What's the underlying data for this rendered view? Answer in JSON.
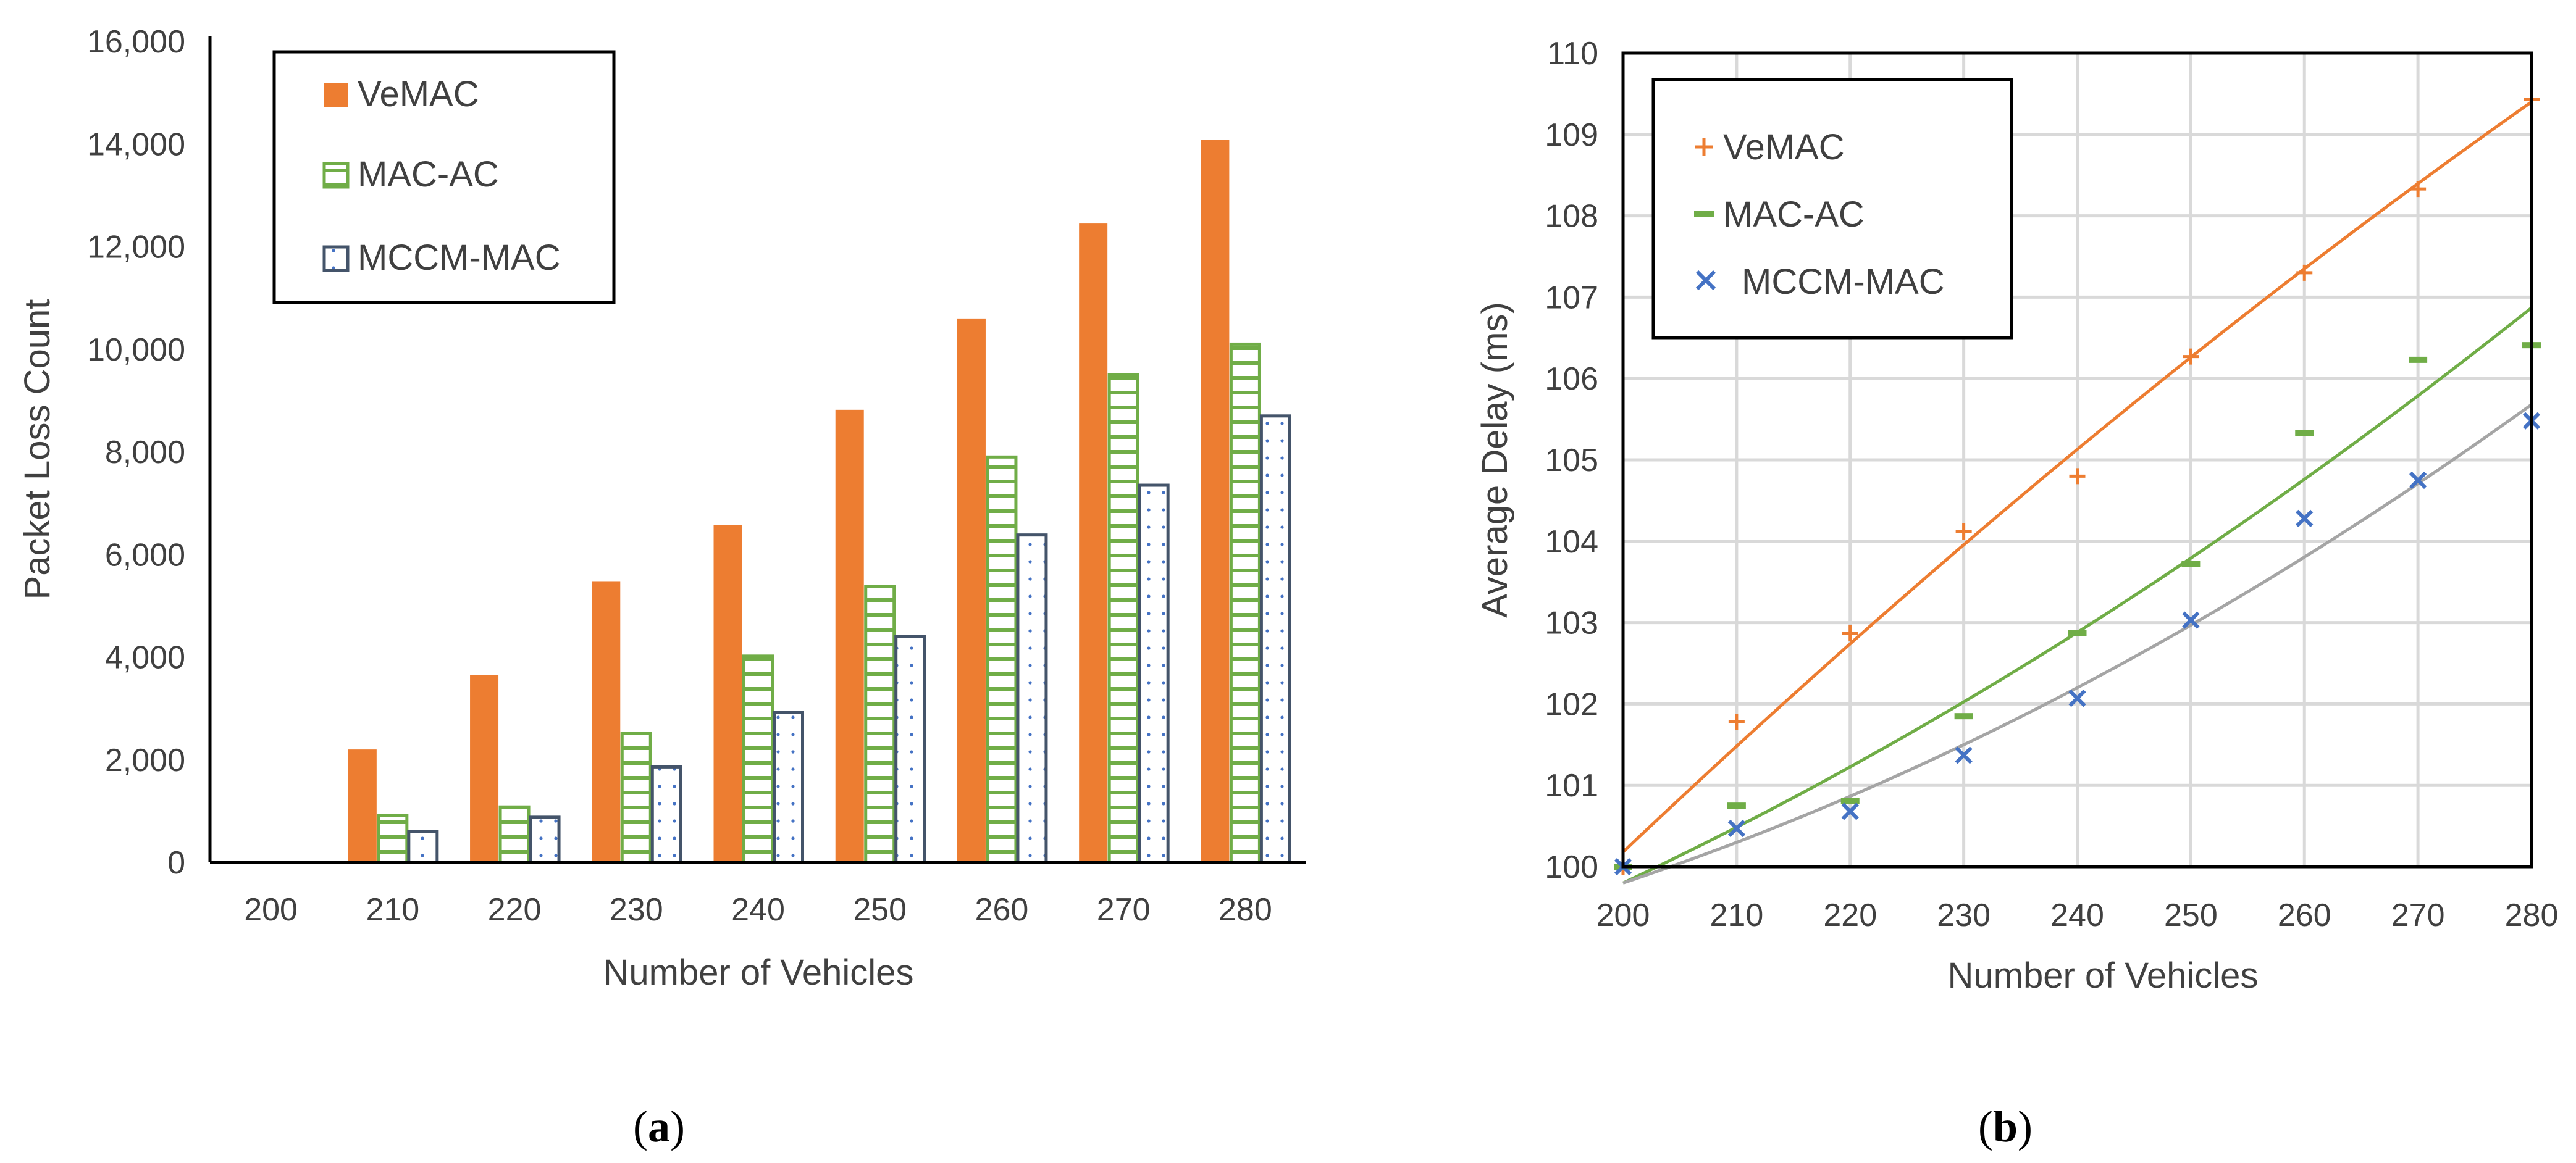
{
  "colors": {
    "vemac": "#ED7D31",
    "macac": "#70AD47",
    "mccm": "#44546A",
    "mccm_marker": "#4472C4",
    "mccm_trend": "#A5A5A5",
    "grid": "#D9D9D9",
    "axis": "#000000"
  },
  "chart_data": [
    {
      "id": "a",
      "type": "bar",
      "caption": {
        "open": "(",
        "letter": "a",
        "close": ")"
      },
      "xlabel": "Number of Vehicles",
      "ylabel": "Packet Loss Count",
      "categories": [
        "200",
        "210",
        "220",
        "230",
        "240",
        "250",
        "260",
        "270",
        "280"
      ],
      "ylim": [
        0,
        16000
      ],
      "yticks": [
        0,
        2000,
        4000,
        6000,
        8000,
        10000,
        12000,
        14000,
        16000
      ],
      "ytick_labels": [
        "0",
        "2,000",
        "4,000",
        "6,000",
        "8,000",
        "10,000",
        "12,000",
        "14,000",
        "16,000"
      ],
      "grid": false,
      "legend_position": "top-left",
      "series": [
        {
          "name": "VeMAC",
          "style": "solid",
          "values": [
            0,
            2200,
            3650,
            5480,
            6580,
            8820,
            10600,
            12450,
            14080
          ]
        },
        {
          "name": "MAC-AC",
          "style": "horizontal-stripes",
          "values": [
            0,
            920,
            1080,
            2520,
            4020,
            5380,
            7900,
            9500,
            10100
          ]
        },
        {
          "name": "MCCM-MAC",
          "style": "dotted",
          "values": [
            0,
            600,
            880,
            1860,
            2920,
            4400,
            6380,
            7350,
            8700
          ]
        }
      ]
    },
    {
      "id": "b",
      "type": "scatter",
      "caption": {
        "open": "(",
        "letter": "b",
        "close": ")"
      },
      "xlabel": "Number of Vehicles",
      "ylabel": "Average Delay (ms)",
      "xlim": [
        200,
        280
      ],
      "xticks": [
        200,
        210,
        220,
        230,
        240,
        250,
        260,
        270,
        280
      ],
      "ylim": [
        100,
        110
      ],
      "yticks": [
        100,
        101,
        102,
        103,
        104,
        105,
        106,
        107,
        108,
        109,
        110
      ],
      "grid": true,
      "legend_position": "top-left",
      "x": [
        200,
        210,
        220,
        230,
        240,
        250,
        260,
        270,
        280
      ],
      "series": [
        {
          "name": "VeMAC",
          "marker": "+",
          "values": [
            100.0,
            101.78,
            102.87,
            104.12,
            104.8,
            106.27,
            107.3,
            108.33,
            109.43
          ],
          "trend": [
            [
              200,
              100.18
            ],
            [
              240,
              105.13
            ],
            [
              280,
              109.4
            ]
          ]
        },
        {
          "name": "MAC-AC",
          "marker": "-",
          "values": [
            100.0,
            100.75,
            100.81,
            101.85,
            102.87,
            103.72,
            105.33,
            106.23,
            106.41
          ],
          "trend": [
            [
              200,
              99.8
            ],
            [
              240,
              102.88
            ],
            [
              280,
              106.87
            ]
          ]
        },
        {
          "name": "MCCM-MAC",
          "marker": "x",
          "values": [
            100.0,
            100.47,
            100.68,
            101.37,
            102.07,
            103.03,
            104.28,
            104.75,
            105.48
          ],
          "trend": [
            [
              200,
              99.8
            ],
            [
              240,
              102.2
            ],
            [
              280,
              105.68
            ]
          ]
        }
      ]
    }
  ]
}
